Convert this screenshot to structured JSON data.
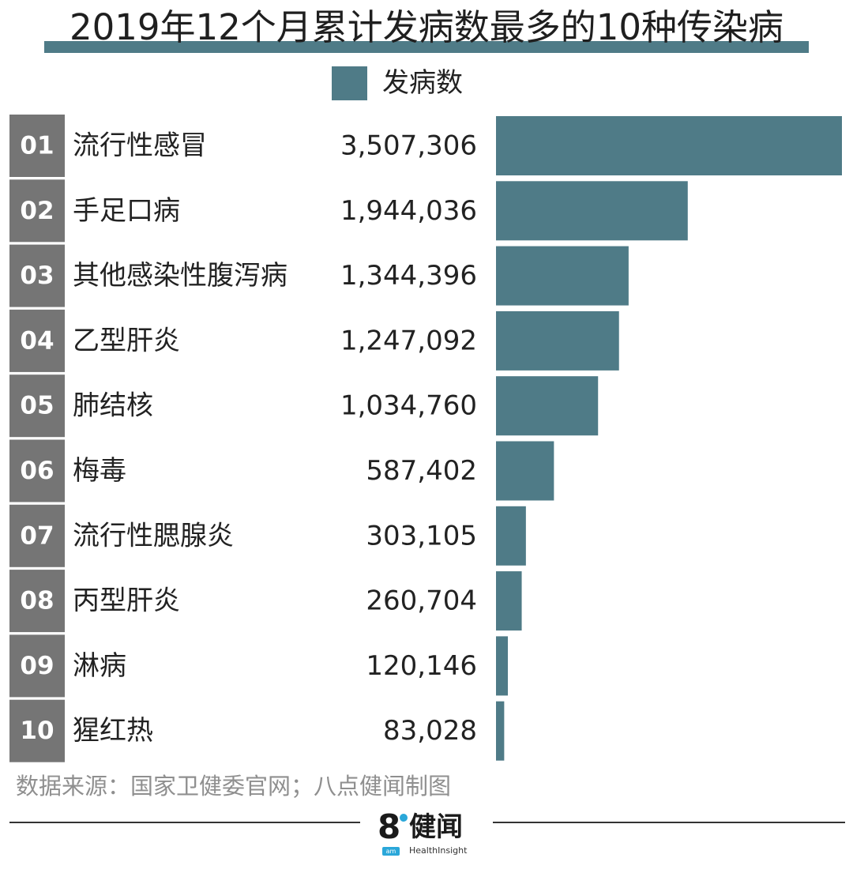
{
  "title": "2019年12个月累计发病数最多的10种传染病",
  "legend_label": "发病数",
  "colors": {
    "bar": "#4f7b87",
    "rank_box": "#757575",
    "title_underline": "#4f7b87"
  },
  "source": "数据来源：国家卫健委官网；八点健闻制图",
  "logo": {
    "eight": "8",
    "name_cn": "健闻",
    "am": "am",
    "name_en": "HealthInsight"
  },
  "chart_data": {
    "type": "bar",
    "orientation": "horizontal",
    "title": "2019年12个月累计发病数最多的10种传染病",
    "series": [
      {
        "name": "发病数",
        "values": [
          3507306,
          1944036,
          1344396,
          1247092,
          1034760,
          587402,
          303105,
          260704,
          120146,
          83028
        ]
      }
    ],
    "ranks": [
      "01",
      "02",
      "03",
      "04",
      "05",
      "06",
      "07",
      "08",
      "09",
      "10"
    ],
    "categories": [
      "流行性感冒",
      "手足口病",
      "其他感染性腹泻病",
      "乙型肝炎",
      "肺结核",
      "梅毒",
      "流行性腮腺炎",
      "丙型肝炎",
      "淋病",
      "猩红热"
    ],
    "value_labels": [
      "3,507,306",
      "1,944,036",
      "1,344,396",
      "1,247,092",
      "1,034,760",
      "587,402",
      "303,105",
      "260,704",
      "120,146",
      "83,028"
    ],
    "xlim": [
      0,
      3507306
    ],
    "grid": false,
    "legend_position": "top-center"
  }
}
